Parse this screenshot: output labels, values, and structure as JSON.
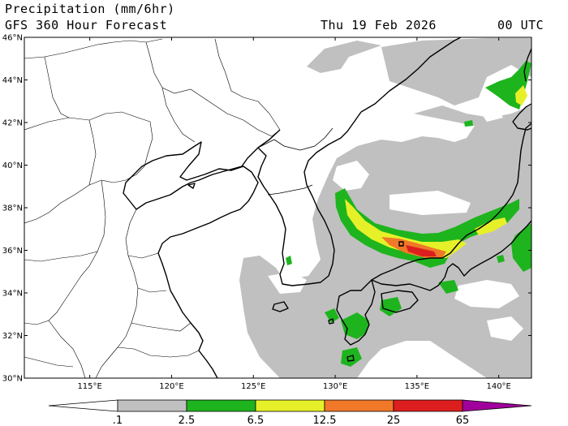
{
  "header": {
    "variable": "Precipitation (mm/6hr)",
    "model": "GFS 360 Hour Forecast",
    "valid_date": "Thu 19 Feb 2026",
    "valid_time": "00 UTC"
  },
  "map": {
    "lon_range": [
      111,
      142
    ],
    "lat_range": [
      30,
      46
    ],
    "lon_ticks": [
      "115°E",
      "120°E",
      "125°E",
      "130°E",
      "135°E",
      "140°E"
    ],
    "lat_ticks": [
      "30°N",
      "32°N",
      "34°N",
      "36°N",
      "38°N",
      "40°N",
      "42°N",
      "44°N",
      "46°N"
    ],
    "land_color": "#ffffff",
    "border_color": "#000000"
  },
  "colorbar": {
    "levels": [
      ".1",
      "2.5",
      "6.5",
      "12.5",
      "25",
      "65"
    ],
    "colors": [
      "#c0c0c0",
      "#1eb41e",
      "#e6f028",
      "#f07828",
      "#dc1e1e",
      "#a0009b"
    ],
    "low_color": "#ffffff"
  }
}
